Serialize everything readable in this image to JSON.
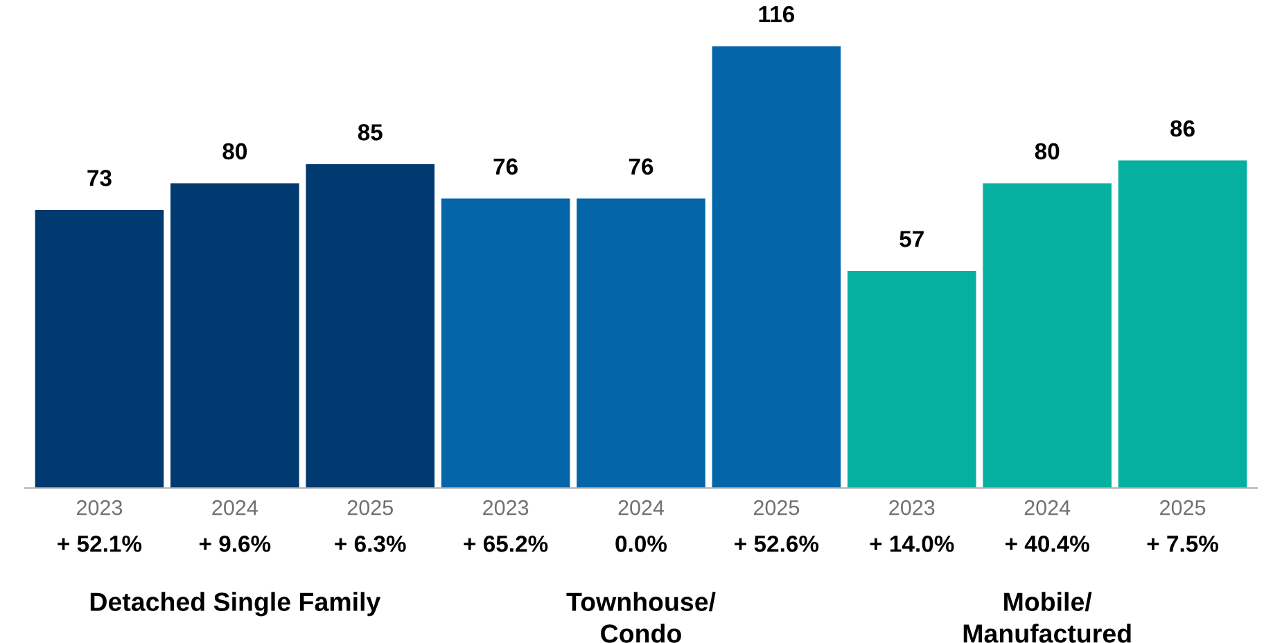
{
  "chart_data": {
    "type": "bar",
    "categories": [
      "2023",
      "2024",
      "2025",
      "2023",
      "2024",
      "2025",
      "2023",
      "2024",
      "2025"
    ],
    "values": [
      73,
      80,
      85,
      76,
      76,
      116,
      57,
      80,
      86
    ],
    "colors": [
      "#003a70",
      "#003a70",
      "#003a70",
      "#0466a8",
      "#0466a8",
      "#0466a8",
      "#06b0a0",
      "#06b0a0",
      "#06b0a0"
    ],
    "data_labels": true,
    "annotations": [
      "+ 52.1%",
      "+ 9.6%",
      "+ 6.3%",
      "+ 65.2%",
      "0.0%",
      "+ 52.6%",
      "+ 14.0%",
      "+ 40.4%",
      "+ 7.5%",
      "Detached Single Family",
      "Townhouse/\nCondo",
      "Mobile/\nManufactured"
    ]
  }
}
